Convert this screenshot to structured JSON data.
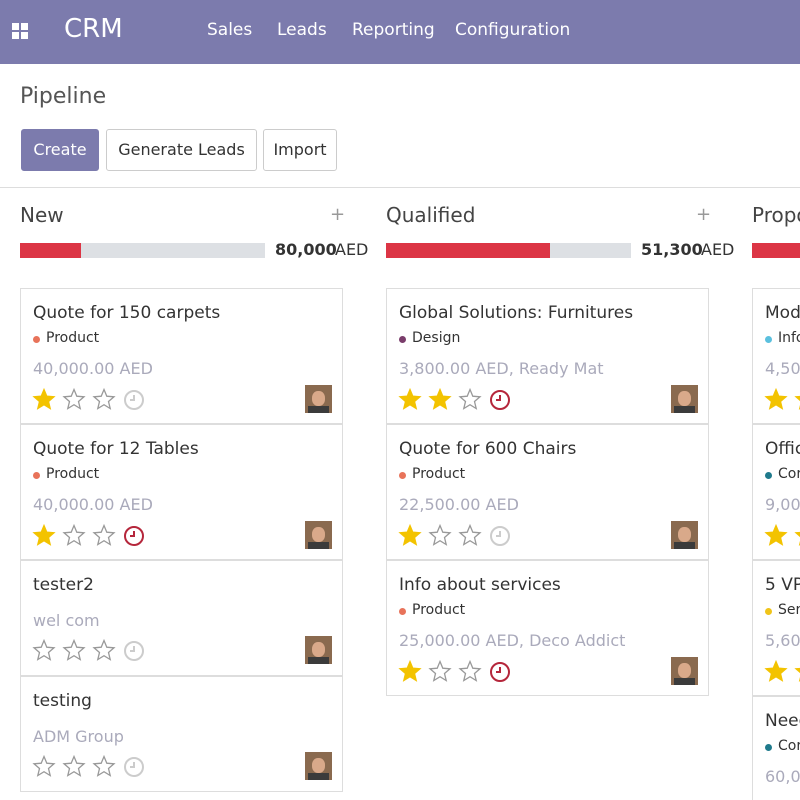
{
  "app": {
    "name": "CRM",
    "menu": [
      "Sales",
      "Leads",
      "Reporting",
      "Configuration"
    ]
  },
  "page": {
    "title": "Pipeline",
    "buttons": [
      "Create",
      "Generate Leads",
      "Import"
    ]
  },
  "columns": [
    {
      "title": "New",
      "total": "80,000",
      "currency": "AED",
      "progress": 25,
      "cards": [
        {
          "title": "Quote for 150 carpets",
          "tag": "Product",
          "tag_color": "#e8735a",
          "subtitle": "40,000.00 AED",
          "stars": 1,
          "clock_color": "#cccccc"
        },
        {
          "title": "Quote for 12 Tables",
          "tag": "Product",
          "tag_color": "#e8735a",
          "subtitle": "40,000.00 AED",
          "stars": 1,
          "clock_color": "#b5263b"
        },
        {
          "title": "tester2",
          "subtitle": "wel com",
          "stars": 0,
          "clock_color": "#cccccc"
        },
        {
          "title": "testing",
          "subtitle": "ADM Group",
          "stars": 0,
          "clock_color": "#cccccc"
        }
      ]
    },
    {
      "title": "Qualified",
      "total": "51,300",
      "currency": "AED",
      "progress": 67,
      "cards": [
        {
          "title": "Global Solutions: Furnitures",
          "tag": "Design",
          "tag_color": "#7a3d6b",
          "subtitle": "3,800.00 AED, Ready Mat",
          "stars": 2,
          "clock_color": "#b5263b"
        },
        {
          "title": "Quote for 600 Chairs",
          "tag": "Product",
          "tag_color": "#e8735a",
          "subtitle": "22,500.00 AED",
          "stars": 1,
          "clock_color": "#cccccc"
        },
        {
          "title": "Info about services",
          "tag": "Product",
          "tag_color": "#e8735a",
          "subtitle": "25,000.00 AED, Deco Addict",
          "stars": 1,
          "clock_color": "#b5263b"
        }
      ]
    },
    {
      "title": "Propo",
      "progress": 40,
      "cards": [
        {
          "title": "Mode",
          "tag": "Info",
          "tag_color": "#5bc0de",
          "subtitle": "4,50",
          "stars": 2
        },
        {
          "title": "Offic",
          "tag": "Cor",
          "tag_color": "#1f7a8c",
          "subtitle": "9,00",
          "stars": 2
        },
        {
          "title": "5 VP",
          "tag": "Ser",
          "tag_color": "#f0c419",
          "subtitle": "5,60",
          "stars": 2
        },
        {
          "title": "Need",
          "tag": "Cor",
          "tag_color": "#1f7a8c",
          "subtitle": "60,0"
        }
      ]
    }
  ]
}
